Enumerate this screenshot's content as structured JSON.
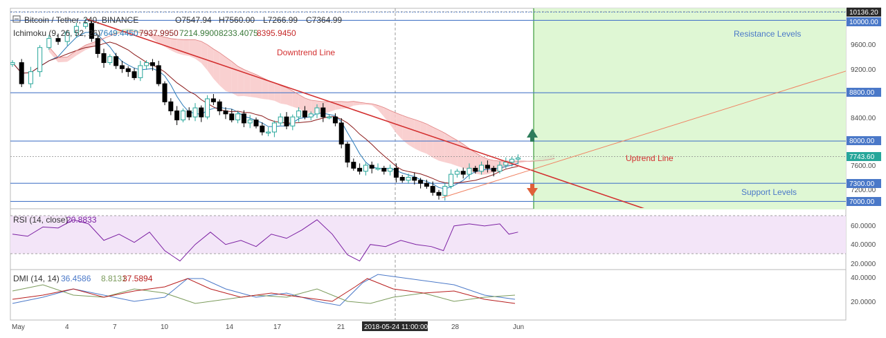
{
  "symbol": {
    "title": "Bitcoin / Tether, 240, BINANCE",
    "open": "O7547.94",
    "high": "H7560.00",
    "low": "L7266.99",
    "close": "C7364.99"
  },
  "ichimoku": {
    "label": "Ichimoku (9, 26, 52, 26)",
    "values": [
      "7649.4450",
      "7937.9950",
      "7214.9900",
      "8233.4075",
      "8395.9450"
    ]
  },
  "rsi": {
    "label": "RSI (14, close)",
    "value": "20.8833"
  },
  "dmi": {
    "label": "DMI (14, 14)",
    "values": [
      "36.4586",
      "8.8131",
      "37.5894"
    ]
  },
  "annotations": {
    "downtrend": "Downtrend Line",
    "uptrend": "Uptrend Line",
    "resistance": "Resistance Levels",
    "support": "Support Levels"
  },
  "price_axis": {
    "ticks": [
      "9600.00",
      "9200.00",
      "8400.00",
      "7600.00",
      "7200.00"
    ],
    "levels": [
      "10136.20",
      "10000.00",
      "8800.00",
      "8000.00",
      "7743.60",
      "7300.00",
      "7000.00"
    ]
  },
  "rsi_axis": {
    "ticks": [
      "60.0000",
      "40.0000",
      "20.0000"
    ]
  },
  "dmi_axis": {
    "ticks": [
      "40.0000",
      "20.0000"
    ]
  },
  "time_axis": {
    "labels": [
      "May",
      "4",
      "7",
      "10",
      "14",
      "17",
      "21",
      "28",
      "Jun"
    ],
    "crosshair": "2018-05-24 11:00:00"
  },
  "colors": {
    "candle_up": "#26a69a",
    "candle_down": "#000000",
    "trend_down": "#d32f2f",
    "trend_up": "#f08060",
    "resistance_zone": "#dff7d4",
    "rsi_band": "#f3e5f8",
    "level_line": "#4a78c8",
    "kumo_bear": "#f8c8c8",
    "kumo_bull": "#d8e8c8",
    "rsi_line": "#7b1fa2",
    "dmi_plus": "#4a78c8",
    "dmi_minus": "#7a9a5a",
    "adx": "#b71c1c",
    "arrow_up": "#2e7d5b",
    "arrow_down": "#e0603a"
  },
  "chart_data": [
    {
      "type": "line",
      "title": "Bitcoin / Tether, 240, BINANCE",
      "x_unit": "day",
      "x_labels": [
        "May",
        "4",
        "7",
        "10",
        "14",
        "17",
        "21",
        "28",
        "Jun"
      ],
      "ylim": [
        6890,
        10200
      ],
      "series": [
        {
          "values": [
            [
              1.0,
              9300
            ],
            [
              1.6,
              8950
            ],
            [
              2.2,
              9150
            ],
            [
              2.8,
              9550
            ],
            [
              3.4,
              9700
            ],
            [
              4.0,
              9650
            ],
            [
              4.6,
              9800
            ],
            [
              5.2,
              9900
            ],
            [
              5.8,
              9950
            ],
            [
              6.2,
              9700
            ],
            [
              6.6,
              9450
            ],
            [
              7.0,
              9300
            ],
            [
              7.4,
              9400
            ],
            [
              7.8,
              9250
            ],
            [
              8.2,
              9200
            ],
            [
              8.6,
              9150
            ],
            [
              9.0,
              9050
            ],
            [
              9.4,
              9250
            ],
            [
              9.8,
              9300
            ],
            [
              10.2,
              9250
            ],
            [
              10.6,
              8950
            ],
            [
              11.0,
              8650
            ],
            [
              11.4,
              8500
            ],
            [
              11.8,
              8350
            ],
            [
              12.2,
              8500
            ],
            [
              12.6,
              8400
            ],
            [
              13.0,
              8550
            ],
            [
              13.4,
              8400
            ],
            [
              13.8,
              8700
            ],
            [
              14.2,
              8650
            ],
            [
              14.6,
              8500
            ],
            [
              15.0,
              8450
            ],
            [
              15.4,
              8350
            ],
            [
              15.8,
              8450
            ],
            [
              16.2,
              8300
            ],
            [
              16.6,
              8350
            ],
            [
              17.0,
              8250
            ],
            [
              17.4,
              8150
            ],
            [
              17.8,
              8150
            ],
            [
              18.2,
              8300
            ],
            [
              18.6,
              8400
            ],
            [
              19.0,
              8250
            ],
            [
              19.4,
              8400
            ],
            [
              19.8,
              8500
            ],
            [
              20.2,
              8400
            ],
            [
              20.6,
              8450
            ],
            [
              21.0,
              8550
            ],
            [
              21.4,
              8400
            ],
            [
              21.8,
              8400
            ],
            [
              22.2,
              8300
            ],
            [
              22.6,
              7950
            ],
            [
              23.0,
              7650
            ],
            [
              23.4,
              7550
            ],
            [
              23.8,
              7500
            ],
            [
              24.2,
              7600
            ],
            [
              24.6,
              7550
            ],
            [
              25.0,
              7550
            ],
            [
              25.4,
              7500
            ],
            [
              25.8,
              7550
            ],
            [
              26.2,
              7400
            ],
            [
              26.6,
              7350
            ],
            [
              27.0,
              7400
            ],
            [
              27.4,
              7350
            ],
            [
              27.8,
              7300
            ],
            [
              28.2,
              7250
            ],
            [
              28.6,
              7150
            ],
            [
              29.0,
              7100
            ],
            [
              29.4,
              7250
            ],
            [
              29.8,
              7450
            ],
            [
              30.2,
              7500
            ],
            [
              30.6,
              7450
            ],
            [
              31.0,
              7550
            ],
            [
              31.4,
              7500
            ],
            [
              31.8,
              7600
            ],
            [
              32.2,
              7550
            ],
            [
              32.6,
              7500
            ],
            [
              33.0,
              7600
            ],
            [
              33.4,
              7650
            ],
            [
              33.8,
              7700
            ],
            [
              34.2,
              7720
            ]
          ]
        }
      ],
      "annotations": [
        {
          "text": "Downtrend Line",
          "x": 16.5,
          "y": 9700
        },
        {
          "text": "Uptrend Line",
          "x": 39.5,
          "y": 7650
        },
        {
          "text": "Resistance Levels",
          "x": 44.5,
          "y": 9900
        },
        {
          "text": "Support Levels",
          "x": 44.5,
          "y": 7100
        }
      ]
    },
    {
      "type": "line",
      "title": "RSI (14, close)",
      "ylim": [
        15,
        72
      ],
      "series": [
        {
          "values": [
            [
              1.0,
              48
            ],
            [
              2.0,
              46
            ],
            [
              3.0,
              55
            ],
            [
              4.0,
              54
            ],
            [
              5.0,
              62
            ],
            [
              6.0,
              58
            ],
            [
              7.0,
              42
            ],
            [
              8.0,
              48
            ],
            [
              9.0,
              40
            ],
            [
              10.0,
              50
            ],
            [
              11.0,
              32
            ],
            [
              12.0,
              22
            ],
            [
              13.0,
              38
            ],
            [
              14.0,
              50
            ],
            [
              15.0,
              38
            ],
            [
              16.0,
              42
            ],
            [
              17.0,
              36
            ],
            [
              18.0,
              48
            ],
            [
              19.0,
              44
            ],
            [
              20.0,
              52
            ],
            [
              21.0,
              62
            ],
            [
              22.0,
              48
            ],
            [
              23.0,
              28
            ],
            [
              23.8,
              22
            ],
            [
              24.5,
              38
            ],
            [
              25.5,
              36
            ],
            [
              26.5,
              42
            ],
            [
              27.5,
              38
            ],
            [
              28.5,
              36
            ],
            [
              29.3,
              32
            ],
            [
              30.0,
              56
            ],
            [
              31.0,
              58
            ],
            [
              32.0,
              56
            ],
            [
              33.0,
              58
            ],
            [
              33.6,
              48
            ],
            [
              34.2,
              50
            ]
          ]
        }
      ]
    },
    {
      "type": "line",
      "title": "DMI (14, 14)",
      "ylim": [
        0,
        48
      ],
      "series": [
        {
          "values": [
            [
              1,
              16
            ],
            [
              3,
              22
            ],
            [
              5,
              30
            ],
            [
              7,
              24
            ],
            [
              9,
              18
            ],
            [
              11,
              22
            ],
            [
              12.5,
              40
            ],
            [
              13.5,
              40
            ],
            [
              15,
              30
            ],
            [
              17,
              22
            ],
            [
              19,
              26
            ],
            [
              21,
              18
            ],
            [
              22.5,
              14
            ],
            [
              24,
              36
            ],
            [
              25,
              44
            ],
            [
              26,
              42
            ],
            [
              28,
              38
            ],
            [
              30,
              34
            ],
            [
              32,
              24
            ],
            [
              34,
              20
            ]
          ]
        },
        {
          "values": [
            [
              1,
              28
            ],
            [
              3,
              34
            ],
            [
              5,
              24
            ],
            [
              7,
              22
            ],
            [
              9,
              30
            ],
            [
              11,
              26
            ],
            [
              13,
              16
            ],
            [
              15,
              20
            ],
            [
              17,
              24
            ],
            [
              19,
              22
            ],
            [
              21,
              30
            ],
            [
              23,
              18
            ],
            [
              24.5,
              16
            ],
            [
              26,
              22
            ],
            [
              28,
              26
            ],
            [
              30,
              18
            ],
            [
              32,
              22
            ],
            [
              34,
              24
            ]
          ]
        },
        {
          "values": [
            [
              1,
              20
            ],
            [
              3,
              24
            ],
            [
              5,
              30
            ],
            [
              7,
              22
            ],
            [
              9,
              28
            ],
            [
              11,
              32
            ],
            [
              12.5,
              40
            ],
            [
              14,
              30
            ],
            [
              16,
              22
            ],
            [
              18,
              26
            ],
            [
              20,
              22
            ],
            [
              22,
              18
            ],
            [
              23.5,
              32
            ],
            [
              24.3,
              40
            ],
            [
              26,
              30
            ],
            [
              28,
              26
            ],
            [
              30,
              28
            ],
            [
              32,
              20
            ],
            [
              34,
              16
            ]
          ]
        }
      ]
    }
  ]
}
